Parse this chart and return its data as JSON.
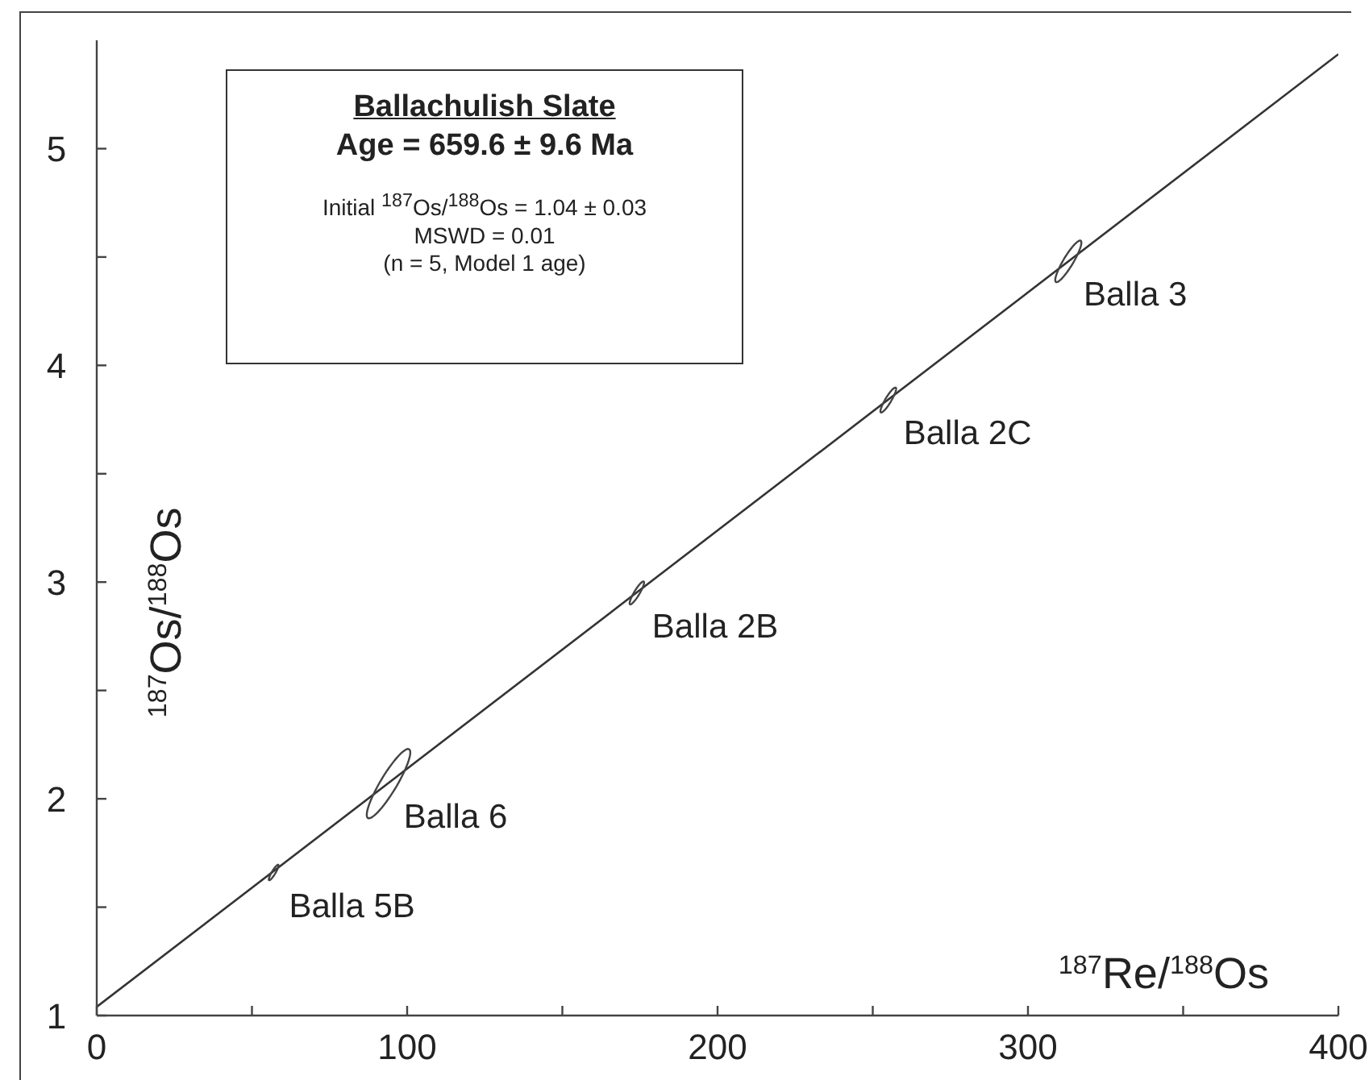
{
  "chart_data": {
    "type": "bubble",
    "title": "Ballachulish Slate",
    "subtitle": "Age = 659.6 ± 9.6 Ma",
    "annotations": [
      "Initial $^{187}$Os/$^{188}$Os = 1.04 ± 0.03",
      "MSWD = 0.01",
      "(n = 5, Model 1 age)"
    ],
    "xlabel": "$^{187}$Re/$^{188}$Os",
    "ylabel": "$^{187}$Os/$^{188}$Os",
    "xlim": [
      0,
      400
    ],
    "ylim": [
      1,
      5.5
    ],
    "xticks": [
      0,
      {
        "value": 50,
        "label": null
      },
      100,
      {
        "value": 150,
        "label": null
      },
      200,
      {
        "value": 250,
        "label": null
      },
      300,
      {
        "value": 350,
        "label": null
      },
      400
    ],
    "yticks": [
      1,
      {
        "value": 1.5,
        "label": null
      },
      2,
      {
        "value": 2.5,
        "label": null
      },
      3,
      {
        "value": 3.5,
        "label": null
      },
      4,
      {
        "value": 4.5,
        "label": null
      },
      5
    ],
    "series": [
      {
        "type": "line",
        "color": "#333333",
        "x": [
          0,
          400
        ],
        "values": [
          1.04,
          5.436
        ]
      },
      {
        "name": "Balla 5B",
        "color": "#444444",
        "x": [
          57
        ],
        "values": [
          1.66
        ],
        "sizes": [
          0.05
        ]
      },
      {
        "name": "Balla 6",
        "color": "#444444",
        "x": [
          94
        ],
        "values": [
          2.07
        ],
        "sizes": [
          1
        ]
      },
      {
        "name": "Balla 2B",
        "color": "#444444",
        "x": [
          174
        ],
        "values": [
          2.95
        ],
        "sizes": [
          0.11
        ]
      },
      {
        "name": "Balla 2C",
        "color": "#444444",
        "x": [
          255
        ],
        "values": [
          3.84
        ],
        "sizes": [
          0.13
        ]
      },
      {
        "name": "Balla 3",
        "color": "#444444",
        "x": [
          313
        ],
        "values": [
          4.48
        ],
        "sizes": [
          0.36
        ]
      }
    ]
  }
}
